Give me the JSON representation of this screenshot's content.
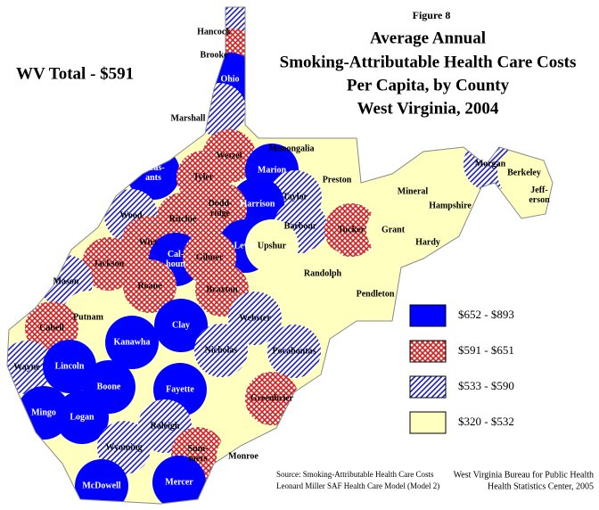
{
  "header": {
    "figure": "Figure 8",
    "title_lines": [
      "Average Annual",
      "Smoking-Attributable Health Care Costs",
      "Per Capita, by County",
      "West Virginia, 2004"
    ],
    "total": "WV Total - $591"
  },
  "legend": [
    {
      "label": "$652  - $893",
      "pattern": "solid",
      "color": "#0000ff"
    },
    {
      "label": "$591 - $651",
      "pattern": "crosshatch",
      "color": "#d02020"
    },
    {
      "label": "$533 - $590",
      "pattern": "diagonal",
      "color": "#2020c0"
    },
    {
      "label": "$320 - $532",
      "pattern": "solid",
      "color": "#ffffc0"
    }
  ],
  "counties": [
    {
      "lines": [
        "Hancock"
      ],
      "class": 2
    },
    {
      "lines": [
        "Brooke"
      ],
      "class": 1
    },
    {
      "lines": [
        "Ohio"
      ],
      "class": 0
    },
    {
      "lines": [
        "Marshall"
      ],
      "class": 2
    },
    {
      "lines": [
        "Wetzel"
      ],
      "class": 1
    },
    {
      "lines": [
        "Monongalia"
      ],
      "class": 3
    },
    {
      "lines": [
        "Marion"
      ],
      "class": 0
    },
    {
      "lines": [
        "Preston"
      ],
      "class": 3
    },
    {
      "lines": [
        "Pleas-",
        "ants"
      ],
      "class": 0
    },
    {
      "lines": [
        "Tyler"
      ],
      "class": 1
    },
    {
      "lines": [
        "Taylor"
      ],
      "class": 2
    },
    {
      "lines": [
        "Harrison"
      ],
      "class": 0
    },
    {
      "lines": [
        "Dodd-",
        "ridge"
      ],
      "class": 1
    },
    {
      "lines": [
        "Wood"
      ],
      "class": 2
    },
    {
      "lines": [
        "Ritchie"
      ],
      "class": 1
    },
    {
      "lines": [
        "Barbour"
      ],
      "class": 2
    },
    {
      "lines": [
        "Tucker"
      ],
      "class": 1
    },
    {
      "lines": [
        "Grant"
      ],
      "class": 3
    },
    {
      "lines": [
        "Mineral"
      ],
      "class": 3
    },
    {
      "lines": [
        "Hampshire"
      ],
      "class": 3
    },
    {
      "lines": [
        "Morgan"
      ],
      "class": 2
    },
    {
      "lines": [
        "Berkeley"
      ],
      "class": 3
    },
    {
      "lines": [
        "Jeff-",
        "erson"
      ],
      "class": 3
    },
    {
      "lines": [
        "Hardy"
      ],
      "class": 3
    },
    {
      "lines": [
        "Wirt"
      ],
      "class": 1
    },
    {
      "lines": [
        "Lewis"
      ],
      "class": 0
    },
    {
      "lines": [
        "Cal-",
        "houn"
      ],
      "class": 0
    },
    {
      "lines": [
        "Gilmer"
      ],
      "class": 1
    },
    {
      "lines": [
        "Jackson"
      ],
      "class": 1
    },
    {
      "lines": [
        "Upshur"
      ],
      "class": 3
    },
    {
      "lines": [
        "Randolph"
      ],
      "class": 3
    },
    {
      "lines": [
        "Mason"
      ],
      "class": 2
    },
    {
      "lines": [
        "Roane"
      ],
      "class": 1
    },
    {
      "lines": [
        "Braxton"
      ],
      "class": 1
    },
    {
      "lines": [
        "Pendleton"
      ],
      "class": 3
    },
    {
      "lines": [
        "Putnam"
      ],
      "class": 3
    },
    {
      "lines": [
        "Cabell"
      ],
      "class": 1
    },
    {
      "lines": [
        "Webster"
      ],
      "class": 2
    },
    {
      "lines": [
        "Clay"
      ],
      "class": 0
    },
    {
      "lines": [
        "Kanawha"
      ],
      "class": 0
    },
    {
      "lines": [
        "Nicholas"
      ],
      "class": 2
    },
    {
      "lines": [
        "Pocahontas"
      ],
      "class": 2
    },
    {
      "lines": [
        "Wayne"
      ],
      "class": 2
    },
    {
      "lines": [
        "Lincoln"
      ],
      "class": 0
    },
    {
      "lines": [
        "Boone"
      ],
      "class": 0
    },
    {
      "lines": [
        "Fayette"
      ],
      "class": 0
    },
    {
      "lines": [
        "Greenbrier"
      ],
      "class": 1
    },
    {
      "lines": [
        "Mingo"
      ],
      "class": 0
    },
    {
      "lines": [
        "Logan"
      ],
      "class": 0
    },
    {
      "lines": [
        "Raleigh"
      ],
      "class": 2
    },
    {
      "lines": [
        "Wyoming"
      ],
      "class": 2
    },
    {
      "lines": [
        "Sum-",
        "mers"
      ],
      "class": 1
    },
    {
      "lines": [
        "Monroe"
      ],
      "class": 3
    },
    {
      "lines": [
        "McDowell"
      ],
      "class": 0
    },
    {
      "lines": [
        "Mercer"
      ],
      "class": 0
    }
  ],
  "footer": {
    "source": [
      "Source:  Smoking-Attributable Health Care Costs",
      "Leonard Miller SAF Health Care Model (Model 2)"
    ],
    "credit": [
      "West Virginia Bureau for Public Health",
      "Health Statistics Center, 2005"
    ]
  }
}
